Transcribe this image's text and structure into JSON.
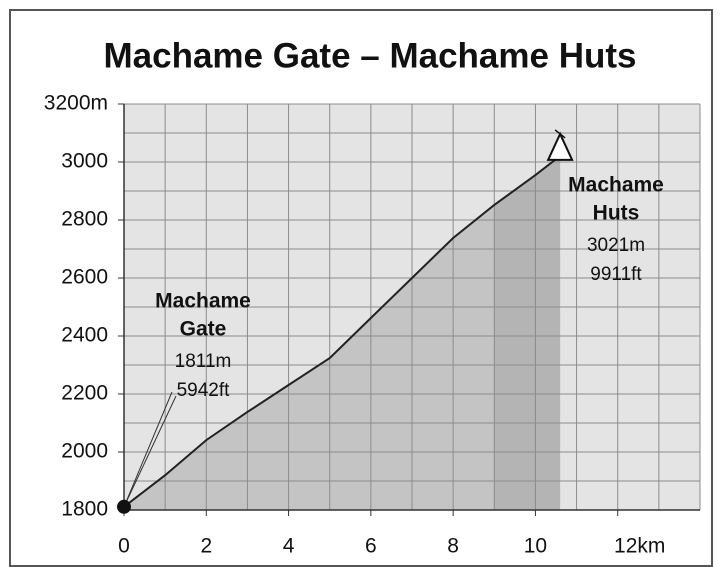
{
  "chart_data": {
    "type": "area",
    "title": "Machame Gate – Machame Huts",
    "x": [
      0,
      1,
      2,
      3,
      4,
      5,
      6,
      7,
      8,
      9,
      10,
      10.6
    ],
    "values": [
      1811,
      1920,
      2041,
      2138,
      2231,
      2324,
      2462,
      2600,
      2738,
      2852,
      2955,
      3021
    ],
    "color": "#222222",
    "fill": "#c4c4c4",
    "background": "#e4e4e4",
    "xlim": [
      0,
      14
    ],
    "ylim": [
      1800,
      3200
    ],
    "xticks": [
      0,
      2,
      4,
      6,
      8,
      10,
      {
        "value": 12,
        "label": "12km"
      }
    ],
    "yticks": [
      1800,
      2000,
      2200,
      2400,
      2600,
      2800,
      3000,
      {
        "value": 3200,
        "label": "3200m"
      }
    ],
    "grid": true,
    "xgrid": [
      1,
      2,
      3,
      4,
      5,
      6,
      7,
      8,
      9,
      10,
      11,
      12,
      13,
      14
    ],
    "ygrid": [
      1900,
      2000,
      2100,
      2200,
      2300,
      2400,
      2500,
      2600,
      2700,
      2800,
      2900,
      3000,
      3100,
      3200
    ],
    "annotations": [
      {
        "label_lines": [
          "Machame",
          "Gate"
        ],
        "elevation": "1811m",
        "feet": "5942ft"
      },
      {
        "label_lines": [
          "Machame",
          "Huts"
        ],
        "elevation": "3021m",
        "feet": "9911ft"
      }
    ]
  }
}
